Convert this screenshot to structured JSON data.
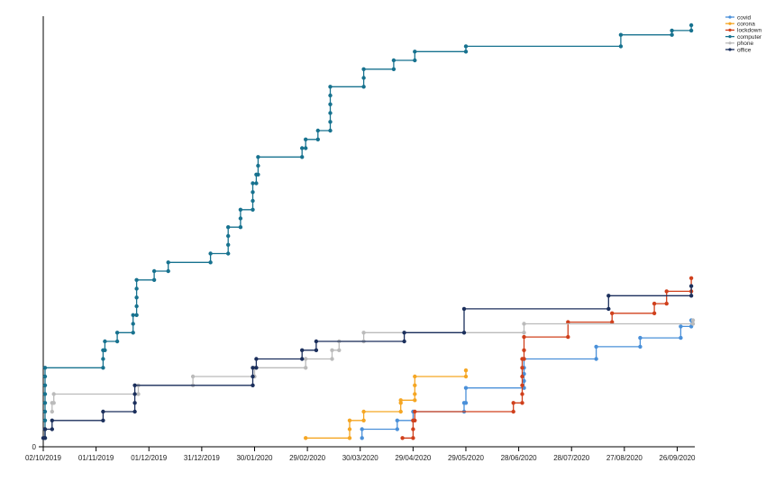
{
  "chart_data": {
    "type": "line",
    "title": "",
    "xlabel": "",
    "ylabel": "",
    "x_tick_labels": [
      "02/10/2019",
      "01/11/2019",
      "01/12/2019",
      "31/12/2019",
      "30/01/2020",
      "29/02/2020",
      "30/03/2020",
      "29/04/2020",
      "29/05/2020",
      "28/06/2020",
      "28/07/2020",
      "27/08/2020",
      "26/09/2020"
    ],
    "y_tick_labels": [
      "0"
    ],
    "xlim": [
      "2019-10-02",
      "2020-10-06"
    ],
    "ylim": [
      0,
      48
    ],
    "step": true,
    "legend_position": "top-right",
    "series": [
      {
        "name": "covid",
        "color": "#4a90d9",
        "points": [
          [
            "2020-03-31",
            1
          ],
          [
            "2020-03-31",
            2
          ],
          [
            "2020-04-20",
            2
          ],
          [
            "2020-04-20",
            3
          ],
          [
            "2020-04-29",
            3
          ],
          [
            "2020-04-29",
            4
          ],
          [
            "2020-05-28",
            4
          ],
          [
            "2020-05-28",
            5
          ],
          [
            "2020-05-29",
            5
          ],
          [
            "2020-05-29",
            6.7
          ],
          [
            "2020-07-01",
            6.7
          ],
          [
            "2020-07-01",
            7.5
          ],
          [
            "2020-07-01",
            8.3
          ],
          [
            "2020-07-01",
            9
          ],
          [
            "2020-07-01",
            10
          ],
          [
            "2020-08-11",
            10
          ],
          [
            "2020-08-11",
            11.4
          ],
          [
            "2020-09-05",
            11.4
          ],
          [
            "2020-09-05",
            12.4
          ],
          [
            "2020-09-28",
            12.4
          ],
          [
            "2020-09-28",
            13.7
          ],
          [
            "2020-10-04",
            13.7
          ],
          [
            "2020-10-04",
            14.4
          ]
        ]
      },
      {
        "name": "corona",
        "color": "#f5a623",
        "points": [
          [
            "2020-02-28",
            1
          ],
          [
            "2020-03-24",
            1
          ],
          [
            "2020-03-24",
            2
          ],
          [
            "2020-03-24",
            3
          ],
          [
            "2020-04-01",
            3
          ],
          [
            "2020-04-01",
            4
          ],
          [
            "2020-04-22",
            4
          ],
          [
            "2020-04-22",
            5
          ],
          [
            "2020-04-22",
            5.3
          ],
          [
            "2020-04-30",
            5.3
          ],
          [
            "2020-04-30",
            6
          ],
          [
            "2020-04-30",
            7
          ],
          [
            "2020-04-30",
            8
          ],
          [
            "2020-05-29",
            8
          ],
          [
            "2020-05-29",
            8.7
          ]
        ]
      },
      {
        "name": "lockdown",
        "color": "#d0401c",
        "points": [
          [
            "2020-04-23",
            1
          ],
          [
            "2020-04-29",
            1
          ],
          [
            "2020-04-29",
            2
          ],
          [
            "2020-04-29",
            3
          ],
          [
            "2020-04-30",
            3
          ],
          [
            "2020-04-30",
            4
          ],
          [
            "2020-06-25",
            4
          ],
          [
            "2020-06-25",
            5
          ],
          [
            "2020-06-30",
            5
          ],
          [
            "2020-06-30",
            6
          ],
          [
            "2020-06-30",
            7
          ],
          [
            "2020-06-30",
            8
          ],
          [
            "2020-06-30",
            9
          ],
          [
            "2020-06-30",
            10
          ],
          [
            "2020-07-01",
            10
          ],
          [
            "2020-07-01",
            11
          ],
          [
            "2020-07-01",
            12.5
          ],
          [
            "2020-07-26",
            12.5
          ],
          [
            "2020-07-26",
            14.2
          ],
          [
            "2020-08-20",
            14.2
          ],
          [
            "2020-08-20",
            15.2
          ],
          [
            "2020-09-13",
            15.2
          ],
          [
            "2020-09-13",
            16.3
          ],
          [
            "2020-09-20",
            16.3
          ],
          [
            "2020-09-20",
            17.7
          ],
          [
            "2020-10-04",
            17.7
          ],
          [
            "2020-10-04",
            19.2
          ]
        ]
      },
      {
        "name": "computer",
        "color": "#17728f",
        "points": [
          [
            "2019-10-03",
            1
          ],
          [
            "2019-10-03",
            2
          ],
          [
            "2019-10-03",
            3
          ],
          [
            "2019-10-03",
            4
          ],
          [
            "2019-10-03",
            5
          ],
          [
            "2019-10-03",
            6
          ],
          [
            "2019-10-03",
            7
          ],
          [
            "2019-10-03",
            8
          ],
          [
            "2019-10-03",
            9
          ],
          [
            "2019-11-05",
            9
          ],
          [
            "2019-11-05",
            10
          ],
          [
            "2019-11-05",
            11
          ],
          [
            "2019-11-06",
            11
          ],
          [
            "2019-11-06",
            12
          ],
          [
            "2019-11-13",
            12
          ],
          [
            "2019-11-13",
            13
          ],
          [
            "2019-11-22",
            13
          ],
          [
            "2019-11-22",
            14
          ],
          [
            "2019-11-22",
            15
          ],
          [
            "2019-11-24",
            15
          ],
          [
            "2019-11-24",
            16
          ],
          [
            "2019-11-24",
            17
          ],
          [
            "2019-11-24",
            18
          ],
          [
            "2019-11-24",
            19
          ],
          [
            "2019-12-04",
            19
          ],
          [
            "2019-12-04",
            20
          ],
          [
            "2019-12-12",
            20
          ],
          [
            "2019-12-12",
            21
          ],
          [
            "2020-01-05",
            21
          ],
          [
            "2020-01-05",
            22
          ],
          [
            "2020-01-15",
            22
          ],
          [
            "2020-01-15",
            23
          ],
          [
            "2020-01-15",
            24
          ],
          [
            "2020-01-15",
            25
          ],
          [
            "2020-01-22",
            25
          ],
          [
            "2020-01-22",
            26
          ],
          [
            "2020-01-22",
            27
          ],
          [
            "2020-01-29",
            27
          ],
          [
            "2020-01-29",
            28
          ],
          [
            "2020-01-29",
            29
          ],
          [
            "2020-01-29",
            30
          ],
          [
            "2020-01-31",
            30
          ],
          [
            "2020-01-31",
            31
          ],
          [
            "2020-02-01",
            31
          ],
          [
            "2020-02-01",
            32
          ],
          [
            "2020-02-01",
            33
          ],
          [
            "2020-02-26",
            33
          ],
          [
            "2020-02-26",
            34
          ],
          [
            "2020-02-28",
            34
          ],
          [
            "2020-02-28",
            35
          ],
          [
            "2020-03-06",
            35
          ],
          [
            "2020-03-06",
            36
          ],
          [
            "2020-03-13",
            36
          ],
          [
            "2020-03-13",
            37
          ],
          [
            "2020-03-13",
            38
          ],
          [
            "2020-03-13",
            39
          ],
          [
            "2020-03-13",
            40
          ],
          [
            "2020-03-13",
            41
          ],
          [
            "2020-04-01",
            41
          ],
          [
            "2020-04-01",
            42
          ],
          [
            "2020-04-01",
            43
          ],
          [
            "2020-04-18",
            43
          ],
          [
            "2020-04-18",
            44
          ],
          [
            "2020-04-30",
            44
          ],
          [
            "2020-04-30",
            45
          ],
          [
            "2020-05-29",
            45
          ],
          [
            "2020-05-29",
            45.6
          ],
          [
            "2020-08-25",
            45.6
          ],
          [
            "2020-08-25",
            46.9
          ],
          [
            "2020-09-23",
            46.9
          ],
          [
            "2020-09-23",
            47.4
          ],
          [
            "2020-10-04",
            47.4
          ],
          [
            "2020-10-04",
            48
          ]
        ]
      },
      {
        "name": "phone",
        "color": "#bbbbbb",
        "points": [
          [
            "2019-10-07",
            4
          ],
          [
            "2019-10-07",
            5
          ],
          [
            "2019-10-08",
            5
          ],
          [
            "2019-10-08",
            6
          ],
          [
            "2019-11-25",
            6
          ],
          [
            "2019-11-25",
            7
          ],
          [
            "2019-12-26",
            7
          ],
          [
            "2019-12-26",
            8
          ],
          [
            "2020-01-30",
            8
          ],
          [
            "2020-01-30",
            9
          ],
          [
            "2020-02-28",
            9
          ],
          [
            "2020-02-28",
            10
          ],
          [
            "2020-03-14",
            10
          ],
          [
            "2020-03-14",
            11
          ],
          [
            "2020-03-18",
            11
          ],
          [
            "2020-03-18",
            12
          ],
          [
            "2020-04-01",
            12
          ],
          [
            "2020-04-01",
            13
          ],
          [
            "2020-07-01",
            13
          ],
          [
            "2020-07-01",
            14
          ],
          [
            "2020-10-05",
            14
          ],
          [
            "2020-10-05",
            14.4
          ]
        ]
      },
      {
        "name": "office",
        "color": "#1b2f5c",
        "points": [
          [
            "2019-10-02",
            1
          ],
          [
            "2019-10-03",
            1
          ],
          [
            "2019-10-03",
            2
          ],
          [
            "2019-10-07",
            2
          ],
          [
            "2019-10-07",
            3
          ],
          [
            "2019-11-05",
            3
          ],
          [
            "2019-11-05",
            4
          ],
          [
            "2019-11-23",
            4
          ],
          [
            "2019-11-23",
            5
          ],
          [
            "2019-11-23",
            6
          ],
          [
            "2019-11-23",
            7
          ],
          [
            "2020-01-29",
            7
          ],
          [
            "2020-01-29",
            8
          ],
          [
            "2020-01-29",
            9
          ],
          [
            "2020-01-31",
            9
          ],
          [
            "2020-01-31",
            10
          ],
          [
            "2020-02-26",
            10
          ],
          [
            "2020-02-26",
            11
          ],
          [
            "2020-03-05",
            11
          ],
          [
            "2020-03-05",
            12
          ],
          [
            "2020-04-24",
            12
          ],
          [
            "2020-04-24",
            13
          ],
          [
            "2020-05-28",
            13
          ],
          [
            "2020-05-28",
            15.7
          ],
          [
            "2020-08-18",
            15.7
          ],
          [
            "2020-08-18",
            17.2
          ],
          [
            "2020-10-04",
            17.2
          ],
          [
            "2020-10-04",
            18.3
          ]
        ]
      }
    ]
  }
}
